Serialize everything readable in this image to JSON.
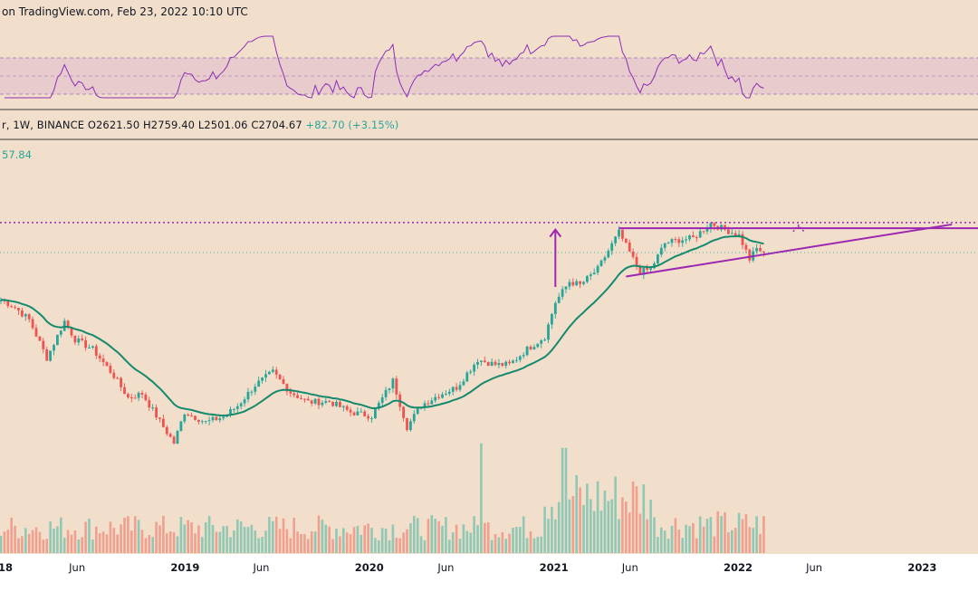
{
  "header": {
    "watermark_text": "on TradingView.com, Feb 23, 2022 10:10 UTC",
    "symbol_text": "r, 1W, BINANCE",
    "open": "O2621.50",
    "high": "H2759.40",
    "low": "L2501.06",
    "close": "C2704.67",
    "change": "+82.70 (+3.15%)",
    "level_text": "57.84"
  },
  "colors": {
    "background": "#f2dfcb",
    "rsi_band": "#e6c8cc",
    "rsi_line": "#8e2db8",
    "up_candle": "#26a69a",
    "down_candle": "#ef5350",
    "up_volume": "#8fc9b5",
    "down_volume": "#f0a08f",
    "ema": "#15896d",
    "pattern": "#9c27b0"
  },
  "x_axis": {
    "ticks": [
      {
        "label": "18",
        "bold": true
      },
      {
        "label": "Jun",
        "bold": false
      },
      {
        "label": "2019",
        "bold": true
      },
      {
        "label": "Jun",
        "bold": false
      },
      {
        "label": "2020",
        "bold": true
      },
      {
        "label": "Jun",
        "bold": false
      },
      {
        "label": "2021",
        "bold": true
      },
      {
        "label": "Jun",
        "bold": false
      },
      {
        "label": "2022",
        "bold": true
      },
      {
        "label": "Jun",
        "bold": false
      },
      {
        "label": "2023",
        "bold": true
      }
    ]
  },
  "chart_data": {
    "type": "candlestick",
    "interval": "1W",
    "exchange": "BINANCE",
    "x_start": "2018-01-01",
    "price_scale": "log",
    "price_anchors": [
      {
        "price": 85,
        "pixel": 490
      },
      {
        "price": 4800,
        "pixel": 244
      }
    ],
    "close_anchors": [
      [
        "2018-01-01",
        1150
      ],
      [
        "2018-01-29",
        1000
      ],
      [
        "2018-02-26",
        800
      ],
      [
        "2018-04-02",
        400
      ],
      [
        "2018-05-07",
        780
      ],
      [
        "2018-05-28",
        560
      ],
      [
        "2018-07-02",
        470
      ],
      [
        "2018-08-13",
        290
      ],
      [
        "2018-09-10",
        195
      ],
      [
        "2018-10-08",
        210
      ],
      [
        "2018-11-19",
        115
      ],
      [
        "2018-12-10",
        86
      ],
      [
        "2018-12-31",
        150
      ],
      [
        "2019-02-11",
        125
      ],
      [
        "2019-03-18",
        138
      ],
      [
        "2019-04-15",
        168
      ],
      [
        "2019-05-20",
        245
      ],
      [
        "2019-06-24",
        310
      ],
      [
        "2019-07-29",
        215
      ],
      [
        "2019-09-02",
        180
      ],
      [
        "2019-10-14",
        182
      ],
      [
        "2019-11-25",
        150
      ],
      [
        "2020-01-06",
        140
      ],
      [
        "2020-02-17",
        265
      ],
      [
        "2020-03-16",
        115
      ],
      [
        "2020-04-13",
        170
      ],
      [
        "2020-05-18",
        205
      ],
      [
        "2020-06-22",
        235
      ],
      [
        "2020-08-03",
        390
      ],
      [
        "2020-09-07",
        355
      ],
      [
        "2020-10-05",
        355
      ],
      [
        "2020-11-09",
        470
      ],
      [
        "2020-12-14",
        590
      ],
      [
        "2021-01-04",
        1100
      ],
      [
        "2021-02-01",
        1600
      ],
      [
        "2021-02-22",
        1500
      ],
      [
        "2021-03-29",
        2000
      ],
      [
        "2021-05-10",
        3900
      ],
      [
        "2021-06-07",
        2400
      ],
      [
        "2021-06-21",
        1900
      ],
      [
        "2021-07-12",
        2000
      ],
      [
        "2021-08-09",
        3200
      ],
      [
        "2021-09-06",
        3400
      ],
      [
        "2021-10-04",
        3500
      ],
      [
        "2021-11-08",
        4600
      ],
      [
        "2021-12-06",
        4100
      ],
      [
        "2022-01-03",
        3700
      ],
      [
        "2022-01-24",
        2400
      ],
      [
        "2022-02-07",
        2900
      ],
      [
        "2022-02-21",
        2704.67
      ]
    ],
    "volume_series": "per-week bars, rising into 2021",
    "last_candle": {
      "open": 2621.5,
      "high": 2759.4,
      "low": 2501.06,
      "close": 2704.67,
      "change": 82.7,
      "change_pct": 3.15
    },
    "ema_series": "smoothed moving average of close",
    "rsi_series": "weekly RSI oscillator",
    "patterns": {
      "resistance_price": 4200,
      "resistance_from": "2021-05-10",
      "support_from": [
        "2021-05-24",
        1750
      ],
      "support_to": [
        "2023-03-01",
        4500
      ],
      "target_price": 4657.84,
      "breakout_arrow_date": "2022-05-01",
      "rise_arrow_date": "2021-01-04",
      "rise_arrow_from": 1450,
      "rise_arrow_to": 4100
    }
  }
}
